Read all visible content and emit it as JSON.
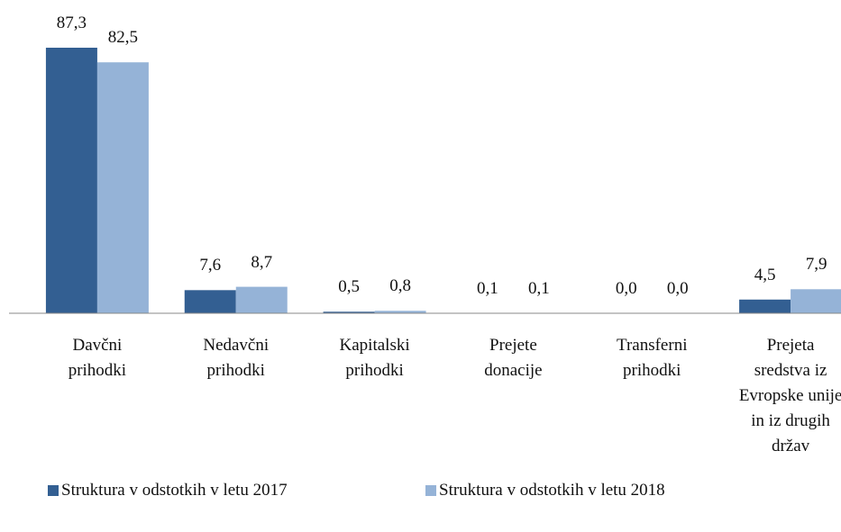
{
  "chart_data": {
    "type": "bar",
    "categories": [
      "Davčni prihodki",
      "Nedavčni prihodki",
      "Kapitalski prihodki",
      "Prejete donacije",
      "Transferni prihodki",
      "Prejeta sredstva iz Evropske unije in iz drugih držav"
    ],
    "series": [
      {
        "name": "Struktura v odstotkih v letu 2017",
        "color": "#335f92",
        "values": [
          87.3,
          7.6,
          0.5,
          0.1,
          0.0,
          4.5
        ],
        "value_labels": [
          "87,3",
          "7,6",
          "0,5",
          "0,1",
          "0,0",
          "4,5"
        ]
      },
      {
        "name": "Struktura v odstotkih v letu 2018",
        "color": "#95b3d7",
        "values": [
          82.5,
          8.7,
          0.8,
          0.1,
          0.0,
          7.9
        ],
        "value_labels": [
          "82,5",
          "8,7",
          "0,8",
          "0,1",
          "0,0",
          "7,9"
        ]
      }
    ],
    "legend": "bottom"
  }
}
